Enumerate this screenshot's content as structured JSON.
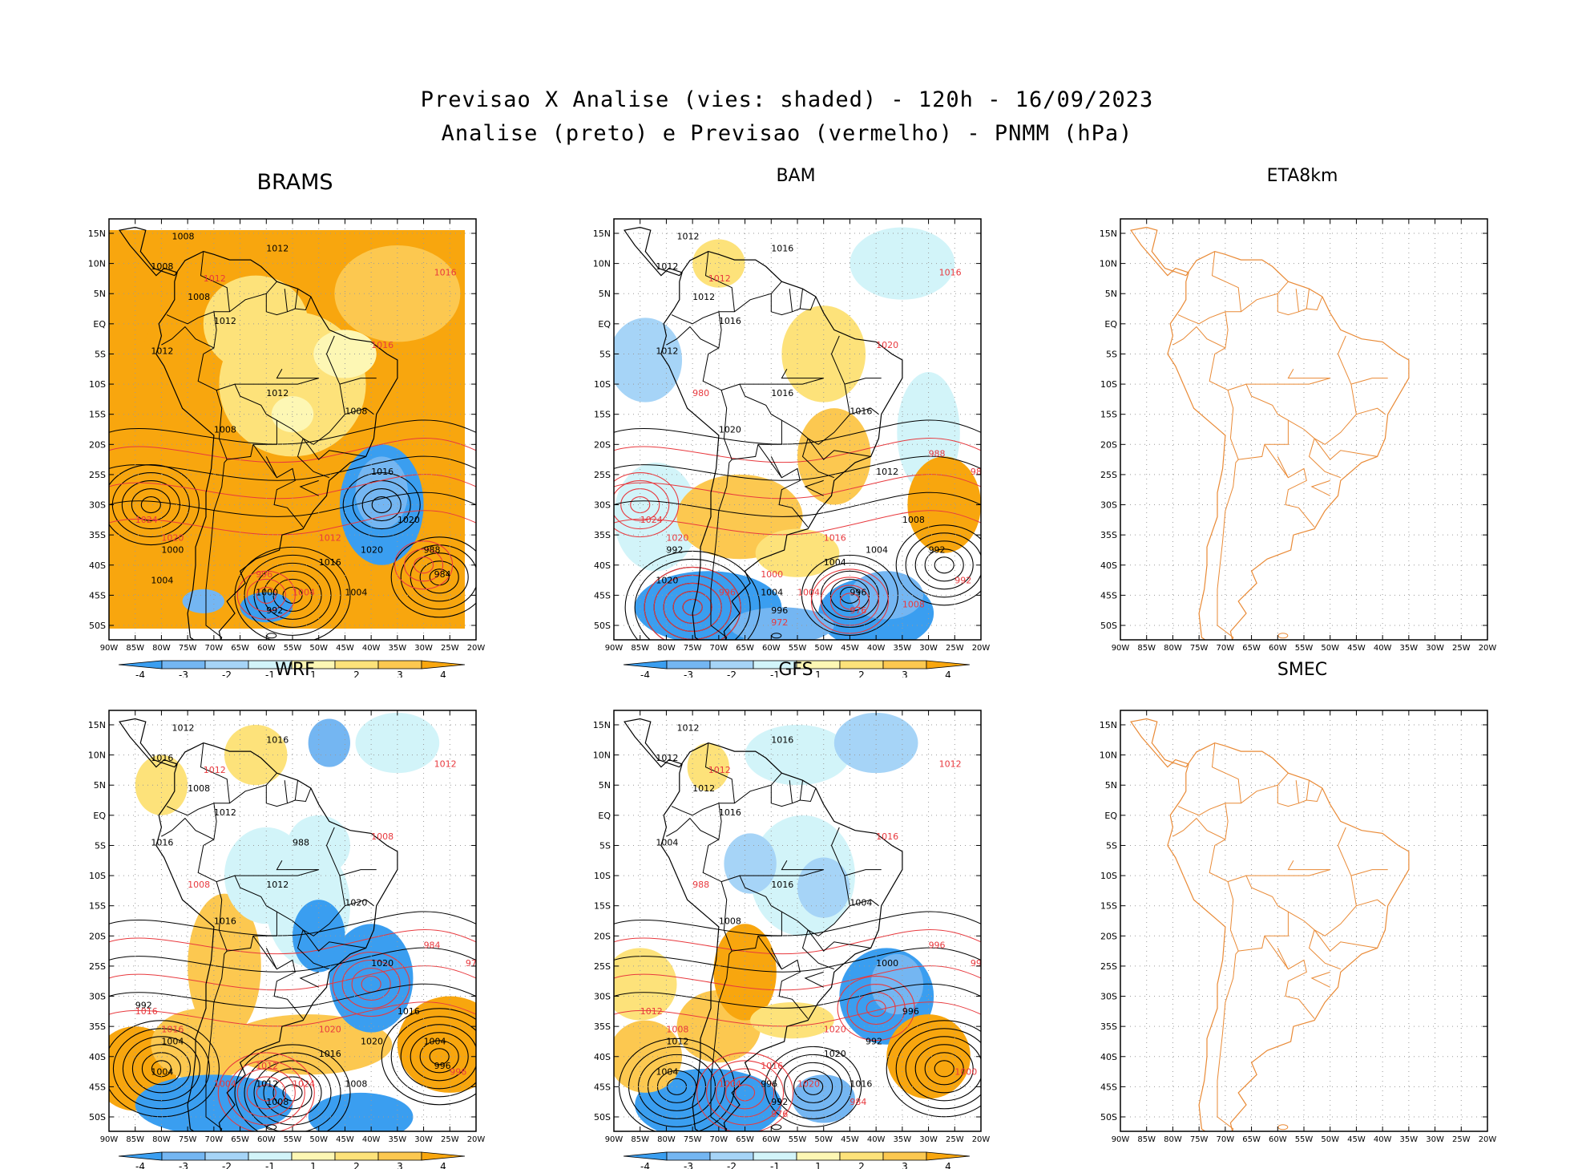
{
  "title": {
    "line1": "Previsao X Analise (vies: shaded) - 120h - 16/09/2023",
    "line2": "Analise (preto) e Previsao (vermelho) - PNMM (hPa)"
  },
  "lat_labels": [
    "15N",
    "10N",
    "5N",
    "EQ",
    "5S",
    "10S",
    "15S",
    "20S",
    "25S",
    "30S",
    "35S",
    "40S",
    "45S",
    "50S"
  ],
  "lon_labels": [
    "90W",
    "85W",
    "80W",
    "75W",
    "70W",
    "65W",
    "60W",
    "55W",
    "50W",
    "45W",
    "40W",
    "35W",
    "30W",
    "25W",
    "20W"
  ],
  "colorbar_labels": [
    "-4",
    "-3",
    "-2",
    "-1",
    "1",
    "2",
    "3",
    "4"
  ],
  "colors": {
    "neg4": "#3a9ef0",
    "neg3": "#74b6f2",
    "neg2": "#a6d4f7",
    "neg1": "#d2f4f9",
    "pos1": "#fdf7b4",
    "pos2": "#fde27a",
    "pos3": "#fcc850",
    "pos4": "#f8a60e",
    "analysis": "#000000",
    "forecast": "#e8393e",
    "empty_map_outline": "#e98a36",
    "grid": "#9a9a9a"
  },
  "panels": [
    {
      "name": "BRAMS",
      "has_data": true,
      "black_labels": [
        "1008",
        "1008",
        "1012",
        "1008",
        "1012",
        "1012",
        "1012",
        "1008",
        "1008",
        "1016",
        "1020",
        "1020",
        "1016",
        "1004",
        "1000",
        "1004",
        "1000",
        "992",
        "988",
        "984"
      ],
      "red_labels": [
        "1012",
        "1016",
        "1016",
        "1024",
        "1020",
        "1012",
        "1004",
        "996"
      ]
    },
    {
      "name": "BAM",
      "has_data": true,
      "black_labels": [
        "1012",
        "1012",
        "1016",
        "1012",
        "1016",
        "1012",
        "1016",
        "1020",
        "1016",
        "1012",
        "1008",
        "1004",
        "1004",
        "996",
        "992",
        "1020",
        "1004",
        "996",
        "992"
      ],
      "red_labels": [
        "1012",
        "1016",
        "1020",
        "1024",
        "1020",
        "1016",
        "1004",
        "1000",
        "996",
        "992",
        "988",
        "984",
        "980",
        "976",
        "972",
        "1008"
      ]
    },
    {
      "name": "ETA8km",
      "has_data": false,
      "black_labels": [],
      "red_labels": []
    },
    {
      "name": "WRF",
      "has_data": true,
      "black_labels": [
        "1012",
        "1016",
        "1016",
        "1008",
        "1012",
        "1016",
        "1012",
        "1016",
        "1020",
        "1020",
        "1016",
        "1020",
        "1016",
        "1008",
        "1004",
        "1004",
        "1012",
        "1008",
        "1004",
        "996",
        "992",
        "988"
      ],
      "red_labels": [
        "1012",
        "1012",
        "1008",
        "1016",
        "1016",
        "1020",
        "1024",
        "1012",
        "1004",
        "996",
        "984",
        "976",
        "1008"
      ]
    },
    {
      "name": "GFS",
      "has_data": true,
      "black_labels": [
        "1012",
        "1012",
        "1016",
        "1012",
        "1016",
        "1004",
        "1016",
        "1008",
        "1004",
        "1000",
        "996",
        "992",
        "1020",
        "1016",
        "1012",
        "1004",
        "996",
        "992"
      ],
      "red_labels": [
        "1012",
        "1012",
        "1016",
        "1012",
        "1008",
        "1020",
        "1020",
        "1016",
        "1004",
        "1000",
        "996",
        "992",
        "988",
        "984",
        "976"
      ]
    },
    {
      "name": "SMEC",
      "has_data": false,
      "black_labels": [],
      "red_labels": []
    }
  ]
}
